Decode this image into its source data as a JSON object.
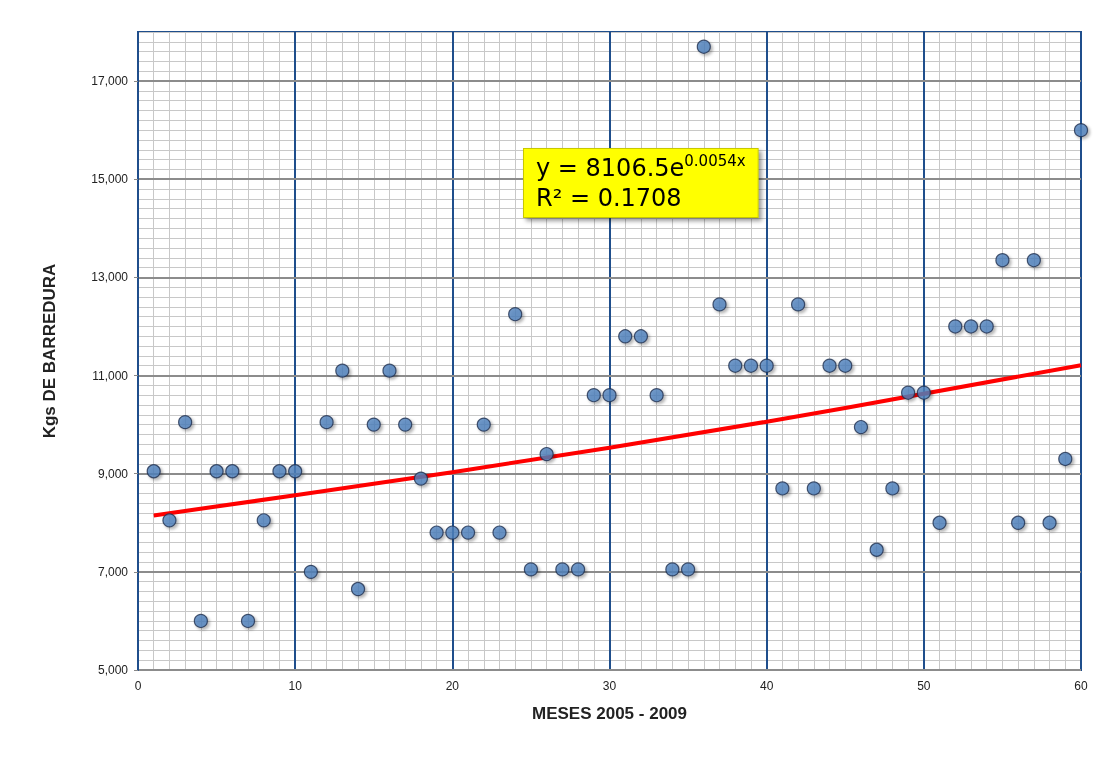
{
  "chart_data": {
    "type": "scatter",
    "xlabel": "MESES 2005 - 2009",
    "ylabel": "Kgs DE BARREDURA",
    "annotations": [
      "y = 8106.5e$^{0.0054x}$",
      "R² = 0.1708"
    ],
    "x": [
      1,
      2,
      3,
      4,
      5,
      6,
      7,
      8,
      9,
      10,
      11,
      12,
      13,
      14,
      15,
      16,
      17,
      18,
      19,
      20,
      21,
      22,
      23,
      24,
      25,
      26,
      27,
      28,
      29,
      30,
      31,
      32,
      33,
      34,
      35,
      36,
      37,
      38,
      39,
      40,
      41,
      42,
      43,
      44,
      45,
      46,
      47,
      48,
      49,
      50,
      51,
      52,
      53,
      54,
      55,
      56,
      57,
      58,
      59,
      60
    ],
    "series": [
      {
        "color": "#4f81bd",
        "values": [
          9050,
          8050,
          10050,
          6000,
          9050,
          9050,
          6000,
          8050,
          9050,
          9050,
          7000,
          10050,
          11100,
          6650,
          10000,
          11100,
          10000,
          8900,
          7800,
          7800,
          7800,
          10000,
          7800,
          12250,
          7050,
          9400,
          7050,
          7050,
          10600,
          10600,
          11800,
          11800,
          10600,
          7050,
          7050,
          17700,
          12450,
          11200,
          11200,
          11200,
          8700,
          12450,
          8700,
          11200,
          11200,
          9950,
          7450,
          8700,
          10650,
          10650,
          8000,
          12000,
          12000,
          12000,
          13350,
          8000,
          13350,
          8000,
          9300,
          16000
        ]
      },
      {
        "type": "line",
        "marker": "none",
        "color": "#ff0000",
        "x": [
          1,
          10,
          20,
          30,
          40,
          45,
          60
        ],
        "values": [
          8150,
          8560,
          9030,
          9530,
          10060,
          10340,
          11210
        ]
      }
    ],
    "xlim": [
      0,
      60
    ],
    "xticks": [
      0,
      10,
      20,
      30,
      40,
      50,
      60
    ],
    "ylim": [
      5000,
      18000
    ],
    "yticks": [
      {
        "value": 5000,
        "label": "5,000"
      },
      {
        "value": 7000,
        "label": "7,000"
      },
      {
        "value": 9000,
        "label": "9,000"
      },
      {
        "value": 11000,
        "label": "11,000"
      },
      {
        "value": 13000,
        "label": "13,000"
      },
      {
        "value": 15000,
        "label": "15,000"
      },
      {
        "value": 17000,
        "label": "17,000"
      }
    ],
    "grid": true,
    "marker": "circle"
  }
}
